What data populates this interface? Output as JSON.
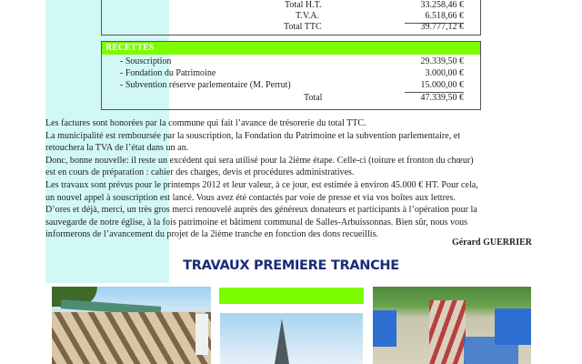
{
  "expenses": {
    "rows": [
      {
        "label": "Total H.T.",
        "amount": "33.258,46 €"
      },
      {
        "label": "T.V.A.",
        "amount": "6.518,66 €"
      },
      {
        "label": "Total TTC",
        "amount": "39.777,12 €"
      }
    ]
  },
  "income": {
    "header": "RECETTES",
    "rows": [
      {
        "label": "-  Souscription",
        "amount": "29.339,50 €"
      },
      {
        "label": "-  Fondation du Patrimoine",
        "amount": "3.000,00 €"
      },
      {
        "label": "-  Subvention réserve parlementaire (M. Perrut)",
        "amount": "15.000,00 €"
      }
    ],
    "total_label": "Total",
    "total_amount": "47.339,50 €"
  },
  "body": {
    "lines": [
      "Les factures sont honorées par la commune qui fait l’avance de trésorerie  du total TTC.",
      "La municipalité est remboursée par la souscription, la Fondation du Patrimoine et la subvention parlementaire, et",
      "retouchera la TVA de l’état dans un an.",
      "Donc, bonne nouvelle: il reste un excédent qui sera utilisé pour la 2ième étape. Celle-ci (toiture et fronton du chœur)",
      "est en cours de préparation : cahier des charges, devis et procédures administratives.",
      "Les travaux sont prévus pour le printemps 2012 et leur valeur, à ce jour, est estimée à environ 45.000 € HT. Pour cela,",
      "un nouvel appel à souscription est lancé. Vous avez été contactés par voie de presse et via vos boîtes aux lettres.",
      "D’ores et déjà, merci, un très gros merci renouvelé auprès des généreux donateurs et participants à l’opération pour la",
      "sauvegarde de notre église, à la fois patrimoine et bâtiment communal de Salles-Arbuissonnas. Bien sûr, nous vous",
      "informerons de l’avancement du projet de la 2ième tranche en fonction des dons recueillis."
    ],
    "signature": "Gérard GUERRIER"
  },
  "section_title": "TRAVAUX PREMIERE TRANCHE",
  "colors": {
    "accent_green": "#7cfc00",
    "stripe": "#d2f8f6",
    "title": "#1b2a78"
  }
}
